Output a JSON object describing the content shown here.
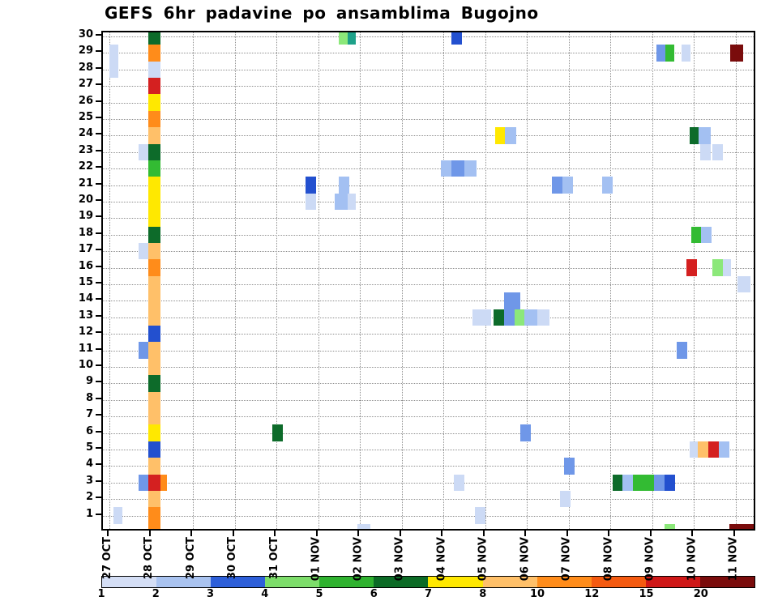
{
  "title": "GEFS 6hr padavine po ansamblima Bugojno",
  "chart_data": {
    "type": "heatmap",
    "title": "GEFS 6hr padavine po ansamblima Bugojno",
    "xlabel": "",
    "ylabel": "",
    "grid": "dotted",
    "legend_position": "bottom-colorbar",
    "x_dates": [
      "27 OCT",
      "28 OCT",
      "29 OCT",
      "30 OCT",
      "31 OCT",
      "01 NOV",
      "02 NOV",
      "03 NOV",
      "04 NOV",
      "05 NOV",
      "06 NOV",
      "07 NOV",
      "08 NOV",
      "09 NOV",
      "10 NOV",
      "11 NOV"
    ],
    "members": [
      1,
      2,
      3,
      4,
      5,
      6,
      7,
      8,
      9,
      10,
      11,
      12,
      13,
      14,
      15,
      16,
      17,
      18,
      19,
      20,
      21,
      22,
      23,
      24,
      25,
      26,
      27,
      28,
      29,
      30
    ],
    "ylim": [
      1,
      30
    ],
    "colorbar": {
      "labels": [
        "1",
        "2",
        "3",
        "4",
        "5",
        "6",
        "7",
        "8",
        "10",
        "12",
        "15",
        "20"
      ],
      "colors": [
        "#d4def5",
        "#a9c3f0",
        "#2d5fd9",
        "#7ddd6a",
        "#2fb22f",
        "#0c6b26",
        "#ffe800",
        "#ffc069",
        "#ff8c1a",
        "#f45a10",
        "#cf1717",
        "#7a0c0c"
      ]
    },
    "palette": {
      "pale": "#ccdaf5",
      "lblue": "#a3c0f2",
      "mblue": "#6f97e8",
      "dblue": "#2350cf",
      "lgreen": "#8ce87a",
      "green": "#33bb33",
      "teal": "#1da189",
      "dgreen": "#0d6b2a",
      "yellow": "#ffe800",
      "lorange": "#ffc069",
      "orange": "#ff8c1a",
      "dorange": "#f45a10",
      "red": "#d42020",
      "darkred": "#7a0c0c"
    },
    "value_of_color_mm": {
      "pale": 1,
      "lblue": 2,
      "mblue": 3,
      "dblue": 4,
      "lgreen": 4.5,
      "green": 5,
      "teal": 5.5,
      "dgreen": 6,
      "yellow": 7,
      "lorange": 8,
      "orange": 10,
      "dorange": 12,
      "red": 15,
      "darkred": 20
    },
    "cells": [
      [
        1,
        0.93,
        0.3,
        "orange"
      ],
      [
        2,
        0.93,
        0.3,
        "lorange"
      ],
      [
        3,
        0.93,
        0.3,
        "red"
      ],
      [
        3,
        1.23,
        0.15,
        "orange"
      ],
      [
        4,
        0.93,
        0.3,
        "lorange"
      ],
      [
        5,
        0.93,
        0.3,
        "dblue"
      ],
      [
        6,
        0.93,
        0.3,
        "yellow"
      ],
      [
        7,
        0.93,
        0.3,
        "lorange"
      ],
      [
        8,
        0.93,
        0.3,
        "lorange"
      ],
      [
        9,
        0.93,
        0.3,
        "dgreen"
      ],
      [
        10,
        0.93,
        0.3,
        "lorange"
      ],
      [
        11,
        0.93,
        0.3,
        "lorange"
      ],
      [
        12,
        0.93,
        0.3,
        "dblue"
      ],
      [
        13,
        0.93,
        0.3,
        "lorange"
      ],
      [
        14,
        0.93,
        0.3,
        "lorange"
      ],
      [
        15,
        0.93,
        0.3,
        "lorange"
      ],
      [
        16,
        0.93,
        0.3,
        "orange"
      ],
      [
        17,
        0.93,
        0.3,
        "lorange"
      ],
      [
        18,
        0.93,
        0.3,
        "dgreen"
      ],
      [
        19,
        0.93,
        0.3,
        "yellow"
      ],
      [
        20,
        0.93,
        0.3,
        "yellow"
      ],
      [
        21,
        0.93,
        0.3,
        "yellow"
      ],
      [
        22,
        0.93,
        0.3,
        "green"
      ],
      [
        23,
        0.93,
        0.3,
        "dgreen"
      ],
      [
        24,
        0.93,
        0.3,
        "lorange"
      ],
      [
        25,
        0.93,
        0.3,
        "orange"
      ],
      [
        26,
        0.93,
        0.3,
        "yellow"
      ],
      [
        27,
        0.93,
        0.3,
        "red"
      ],
      [
        28,
        0.93,
        0.3,
        "pale"
      ],
      [
        29,
        0.93,
        0.3,
        "orange"
      ],
      [
        30,
        0.93,
        0.3,
        "dgreen"
      ],
      [
        0,
        0.93,
        0.3,
        "orange"
      ],
      [
        3,
        0.7,
        0.23,
        "mblue"
      ],
      [
        11,
        0.7,
        0.23,
        "mblue"
      ],
      [
        17,
        0.7,
        0.23,
        "pale"
      ],
      [
        23,
        0.7,
        0.23,
        "pale"
      ],
      [
        28,
        0,
        0.22,
        "pale"
      ],
      [
        29,
        0,
        0.22,
        "pale"
      ],
      [
        1,
        0.1,
        0.22,
        "pale"
      ],
      [
        30,
        5.5,
        0.2,
        "lgreen"
      ],
      [
        30,
        5.7,
        0.2,
        "teal"
      ],
      [
        30,
        8.2,
        0.25,
        "dblue"
      ],
      [
        29,
        13.1,
        0.22,
        "mblue"
      ],
      [
        29,
        13.32,
        0.22,
        "green"
      ],
      [
        29,
        13.7,
        0.22,
        "pale"
      ],
      [
        29,
        14.88,
        0.3,
        "darkred"
      ],
      [
        24,
        9.25,
        0.22,
        "yellow"
      ],
      [
        24,
        9.47,
        0.28,
        "lblue"
      ],
      [
        24,
        13.9,
        0.22,
        "dgreen"
      ],
      [
        24,
        14.12,
        0.28,
        "lblue"
      ],
      [
        23,
        14.15,
        0.25,
        "pale"
      ],
      [
        23,
        14.45,
        0.25,
        "pale"
      ],
      [
        22,
        7.95,
        0.25,
        "lblue"
      ],
      [
        22,
        8.2,
        0.3,
        "mblue"
      ],
      [
        22,
        8.5,
        0.3,
        "lblue"
      ],
      [
        21,
        4.7,
        0.25,
        "dblue"
      ],
      [
        21,
        5.5,
        0.25,
        "lblue"
      ],
      [
        21,
        10.6,
        0.25,
        "mblue"
      ],
      [
        21,
        10.85,
        0.25,
        "lblue"
      ],
      [
        21,
        11.8,
        0.25,
        "lblue"
      ],
      [
        20,
        4.7,
        0.25,
        "pale"
      ],
      [
        20,
        5.4,
        0.3,
        "lblue"
      ],
      [
        20,
        5.7,
        0.2,
        "pale"
      ],
      [
        18,
        13.95,
        0.22,
        "green"
      ],
      [
        18,
        14.17,
        0.25,
        "lblue"
      ],
      [
        16,
        13.82,
        0.25,
        "red"
      ],
      [
        16,
        14.45,
        0.25,
        "lgreen"
      ],
      [
        16,
        14.7,
        0.2,
        "pale"
      ],
      [
        15,
        15.05,
        0.3,
        "pale"
      ],
      [
        14,
        9.45,
        0.4,
        "mblue"
      ],
      [
        13,
        8.7,
        0.45,
        "pale"
      ],
      [
        13,
        9.2,
        0.25,
        "dgreen"
      ],
      [
        13,
        9.45,
        0.25,
        "mblue"
      ],
      [
        13,
        9.7,
        0.25,
        "lgreen"
      ],
      [
        13,
        9.95,
        0.3,
        "lblue"
      ],
      [
        13,
        10.25,
        0.3,
        "pale"
      ],
      [
        11,
        13.6,
        0.25,
        "mblue"
      ],
      [
        6,
        3.9,
        0.25,
        "dgreen"
      ],
      [
        6,
        9.85,
        0.25,
        "mblue"
      ],
      [
        5,
        13.9,
        0.2,
        "pale"
      ],
      [
        5,
        14.1,
        0.25,
        "lorange"
      ],
      [
        5,
        14.35,
        0.25,
        "red"
      ],
      [
        5,
        14.6,
        0.25,
        "lblue"
      ],
      [
        4,
        10.9,
        0.25,
        "mblue"
      ],
      [
        3,
        8.25,
        0.25,
        "pale"
      ],
      [
        3,
        12.05,
        0.25,
        "dgreen"
      ],
      [
        3,
        12.3,
        0.25,
        "lblue"
      ],
      [
        3,
        12.55,
        0.25,
        "green"
      ],
      [
        3,
        12.8,
        0.25,
        "green"
      ],
      [
        3,
        13.05,
        0.25,
        "mblue"
      ],
      [
        3,
        13.3,
        0.25,
        "dblue"
      ],
      [
        2,
        10.8,
        0.25,
        "pale"
      ],
      [
        1,
        8.75,
        0.25,
        "pale"
      ],
      [
        0,
        5.95,
        0.3,
        "pale"
      ],
      [
        0,
        13.3,
        0.25,
        "lgreen"
      ],
      [
        0,
        14.85,
        0.6,
        "darkred"
      ]
    ]
  }
}
